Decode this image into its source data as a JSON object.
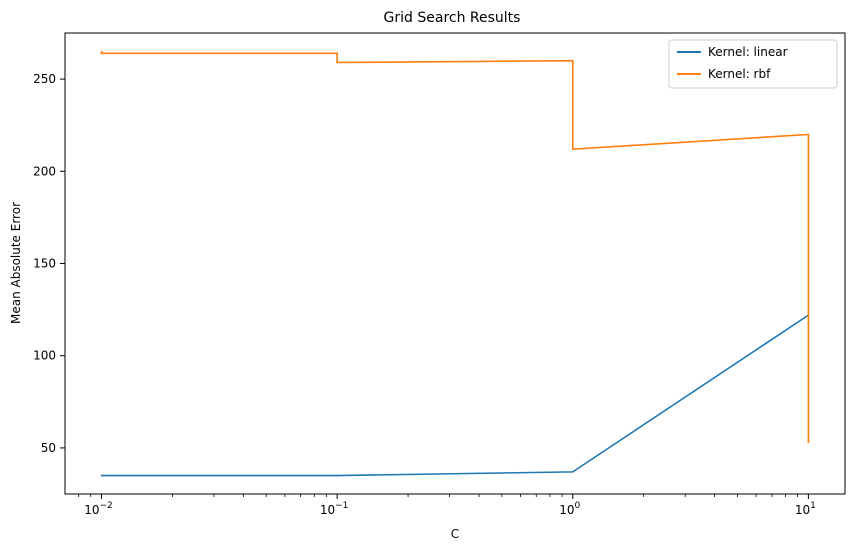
{
  "chart_data": {
    "type": "line",
    "title": "Grid Search Results",
    "xlabel": "C",
    "ylabel": "Mean Absolute Error",
    "xscale": "log",
    "xlim": [
      0.007,
      14.3
    ],
    "ylim": [
      25,
      275
    ],
    "xticks": [
      {
        "value": 0.01,
        "base": "10",
        "exp": "−2"
      },
      {
        "value": 0.1,
        "base": "10",
        "exp": "−1"
      },
      {
        "value": 1,
        "base": "10",
        "exp": "0"
      },
      {
        "value": 10,
        "base": "10",
        "exp": "1"
      }
    ],
    "yticks": [
      50,
      100,
      150,
      200,
      250
    ],
    "legend_position": "top-right",
    "grid": false,
    "series": [
      {
        "name": "Kernel: linear",
        "color": "#1f77b4",
        "points": [
          [
            0.01,
            35
          ],
          [
            0.1,
            35
          ],
          [
            1,
            37
          ],
          [
            10,
            122
          ]
        ]
      },
      {
        "name": "Kernel: rbf",
        "color": "#ff7f0e",
        "points": [
          [
            0.01,
            265
          ],
          [
            0.01,
            264
          ],
          [
            0.1,
            264
          ],
          [
            0.1,
            259
          ],
          [
            1,
            260
          ],
          [
            1,
            212
          ],
          [
            10,
            220
          ],
          [
            10,
            53
          ]
        ]
      }
    ]
  }
}
